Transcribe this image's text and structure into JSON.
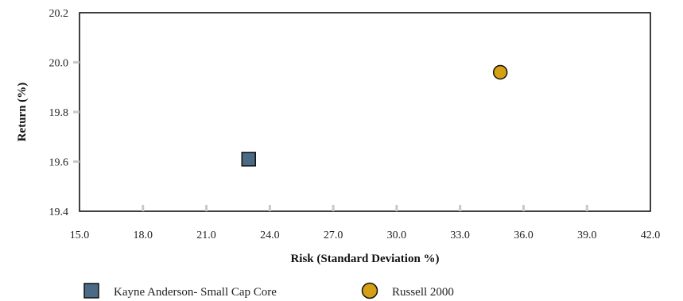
{
  "chart_data": {
    "type": "scatter",
    "xlabel": "Risk (Standard Deviation %)",
    "ylabel": "Return (%)",
    "xlim": [
      15.0,
      42.0
    ],
    "ylim": [
      19.4,
      20.2
    ],
    "x_ticks": [
      "15.0",
      "18.0",
      "21.0",
      "24.0",
      "27.0",
      "30.0",
      "33.0",
      "36.0",
      "39.0",
      "42.0"
    ],
    "y_ticks": [
      "19.4",
      "19.6",
      "19.8",
      "20.0",
      "20.2"
    ],
    "grid": false,
    "legend_position": "bottom-left",
    "series": [
      {
        "name": "Kayne Anderson- Small Cap Core",
        "marker": "square",
        "color": "#4a6a86",
        "x": 23.0,
        "y": 19.61
      },
      {
        "name": "Russell 2000",
        "marker": "circle",
        "color": "#d4a015",
        "x": 34.9,
        "y": 19.96
      }
    ]
  }
}
